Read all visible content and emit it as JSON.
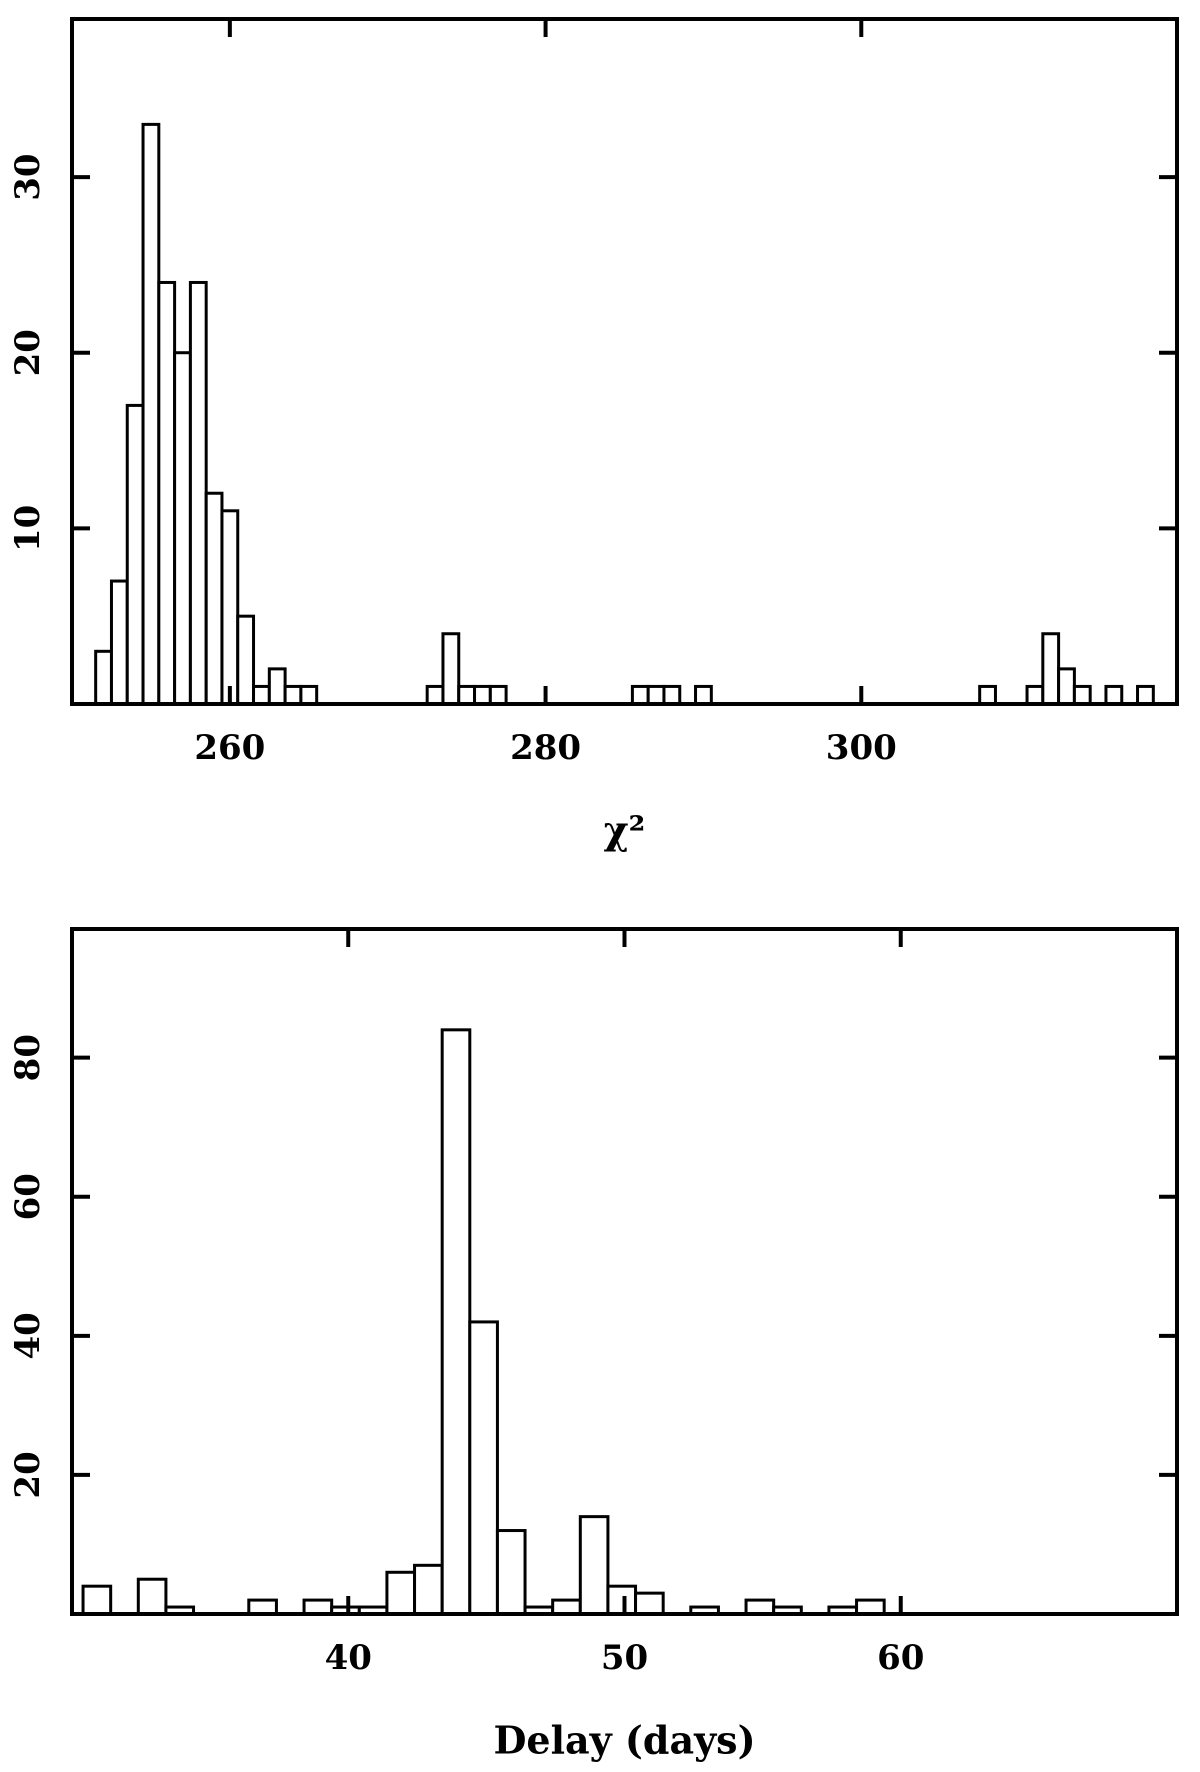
{
  "chart_data": [
    {
      "type": "histogram",
      "xlabel": "χ²",
      "color": "#000000",
      "bins": [
        251.5,
        252.5,
        253.5,
        254.5,
        255.5,
        256.5,
        257.5,
        258.5,
        259.5,
        260.5,
        261.5,
        262.5,
        263.5,
        264.5,
        265.5,
        266.5,
        267.5,
        268.5,
        269.5,
        270.5,
        271.5,
        272.5,
        273.5,
        274.5,
        275.5,
        276.5,
        277.5,
        278.5,
        279.5,
        280.5,
        281.5,
        282.5,
        283.5,
        284.5,
        285.5,
        286.5,
        287.5,
        288.5,
        289.5,
        290.5,
        291.5,
        292.5,
        293.5,
        294.5,
        295.5,
        296.5,
        297.5,
        298.5,
        299.5,
        300.5,
        301.5,
        302.5,
        303.5,
        304.5,
        305.5,
        306.5,
        307.5,
        308.5,
        309.5,
        310.5,
        311.5,
        312.5,
        313.5,
        314.5,
        315.5,
        316.5,
        317.5,
        318.5
      ],
      "values": [
        3,
        7,
        17,
        33,
        24,
        20,
        24,
        12,
        11,
        5,
        1,
        2,
        1,
        1,
        0,
        0,
        0,
        0,
        0,
        0,
        0,
        1,
        4,
        1,
        1,
        1,
        0,
        0,
        0,
        0,
        0,
        0,
        0,
        0,
        1,
        1,
        1,
        0,
        1,
        0,
        0,
        0,
        0,
        0,
        0,
        0,
        0,
        0,
        0,
        0,
        0,
        0,
        0,
        0,
        0,
        0,
        1,
        0,
        0,
        1,
        4,
        2,
        1,
        0,
        1,
        0,
        1
      ],
      "xlim": [
        250,
        320
      ],
      "ylim": [
        0,
        39
      ],
      "xticks": [
        260,
        280,
        300
      ],
      "yticks": [
        10,
        20,
        30
      ]
    },
    {
      "type": "histogram",
      "xlabel": "Delay (days)",
      "color": "#000000",
      "bins": [
        30.4,
        31.4,
        32.4,
        33.4,
        34.4,
        35.4,
        36.4,
        37.4,
        38.4,
        39.4,
        40.4,
        41.4,
        42.4,
        43.4,
        44.4,
        45.4,
        46.4,
        47.4,
        48.4,
        49.4,
        50.4,
        51.4,
        52.4,
        53.4,
        54.4,
        55.4,
        56.4,
        57.4,
        58.4,
        59.4
      ],
      "values": [
        4,
        0,
        5,
        1,
        0,
        0,
        2,
        0,
        2,
        1,
        1,
        6,
        7,
        84,
        42,
        12,
        1,
        2,
        14,
        4,
        3,
        0,
        1,
        0,
        2,
        1,
        0,
        1,
        2
      ],
      "xlim": [
        30,
        70
      ],
      "ylim": [
        0,
        98.5
      ],
      "xticks": [
        40,
        50,
        60
      ],
      "yticks": [
        20,
        40,
        60,
        80
      ]
    }
  ]
}
